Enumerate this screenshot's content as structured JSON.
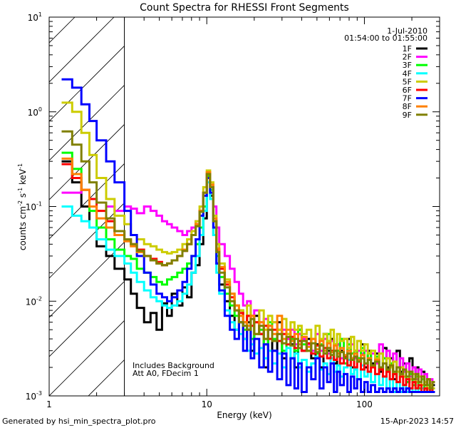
{
  "chart_data": {
    "type": "line",
    "title": "Count Spectra for RHESSI Front Segments",
    "xlabel": "Energy (keV)",
    "ylabel": "counts cm",
    "ylabel_exp1": "-2",
    "ylabel_mid": " s",
    "ylabel_exp2": "-1",
    "ylabel_end": " keV",
    "ylabel_exp3": "-1",
    "x_scale": "log",
    "y_scale": "log",
    "xlim": [
      1,
      300
    ],
    "ylim": [
      0.001,
      10
    ],
    "x_ticks": [
      {
        "value": 1,
        "label": "1"
      },
      {
        "value": 10,
        "label": "10"
      },
      {
        "value": 100,
        "label": "100"
      }
    ],
    "y_ticks": [
      {
        "value": 0.001,
        "base": "10",
        "exp": "-3"
      },
      {
        "value": 0.01,
        "base": "10",
        "exp": "-2"
      },
      {
        "value": 0.1,
        "base": "10",
        "exp": "-1"
      },
      {
        "value": 1,
        "base": "10",
        "exp": "0"
      },
      {
        "value": 10,
        "base": "10",
        "exp": "1"
      }
    ],
    "excluded_region": [
      1,
      3
    ],
    "date": "1-Jul-2010",
    "time_range": "01:54:00 to 01:55:00",
    "notes": [
      "Includes Background",
      "Att A0, FDecim 1"
    ],
    "footer_left": "Generated by hsi_min_spectra_plot.pro",
    "footer_right": "15-Apr-2023 14:57",
    "edges": [
      1.2,
      1.4,
      1.6,
      1.8,
      2.0,
      2.3,
      2.6,
      3.0,
      3.3,
      3.6,
      4.0,
      4.4,
      4.8,
      5.2,
      5.6,
      6.0,
      6.5,
      7.0,
      7.5,
      8.0,
      8.5,
      9.0,
      9.5,
      10.0,
      10.5,
      11.0,
      11.5,
      12.0,
      13.0,
      14.0,
      15.0,
      16.0,
      17.0,
      18.0,
      19.0,
      20.0,
      21.5,
      23.0,
      24.5,
      26.0,
      28.0,
      30.0,
      32.0,
      34.0,
      36.0,
      38.0,
      40.0,
      43.0,
      46.0,
      49.0,
      52.0,
      55.0,
      58.0,
      61.0,
      64.0,
      67.0,
      70.0,
      74.0,
      78.0,
      82.0,
      86.0,
      90.0,
      95.0,
      100.0,
      105.0,
      110.0,
      117.0,
      124.0,
      131.0,
      138.0,
      145.0,
      152.0,
      160.0,
      168.0,
      176.0,
      184.0,
      193.0,
      202.0,
      211.0,
      220.0,
      230.0,
      240.0,
      250.0,
      260.0,
      270.0,
      280.0
    ],
    "series": [
      {
        "name": "1F",
        "color": "#000000",
        "values": [
          0.3,
          0.18,
          0.1,
          0.06,
          0.038,
          0.03,
          0.022,
          0.017,
          0.012,
          0.0085,
          0.006,
          0.0075,
          0.005,
          0.0095,
          0.007,
          0.012,
          0.009,
          0.014,
          0.011,
          0.02,
          0.024,
          0.04,
          0.075,
          0.2,
          0.13,
          0.05,
          0.025,
          0.015,
          0.01,
          0.007,
          0.005,
          0.008,
          0.004,
          0.006,
          0.003,
          0.007,
          0.0045,
          0.002,
          0.0055,
          0.003,
          0.006,
          0.0025,
          0.004,
          0.0035,
          0.002,
          0.005,
          0.003,
          0.004,
          0.0025,
          0.0035,
          0.002,
          0.0045,
          0.003,
          0.004,
          0.0022,
          0.0035,
          0.003,
          0.0025,
          0.004,
          0.002,
          0.003,
          0.0025,
          0.0035,
          0.002,
          0.003,
          0.0022,
          0.0028,
          0.0018,
          0.0032,
          0.002,
          0.0025,
          0.0015,
          0.003,
          0.0018,
          0.0022,
          0.0014,
          0.0025,
          0.0015,
          0.002,
          0.0012,
          0.0018,
          0.0011,
          0.0015,
          0.0011,
          0.0013
        ]
      },
      {
        "name": "2F",
        "color": "#ff00ff",
        "values": [
          0.14,
          0.14,
          0.15,
          0.12,
          0.11,
          0.1,
          0.09,
          0.1,
          0.095,
          0.085,
          0.1,
          0.09,
          0.08,
          0.07,
          0.065,
          0.06,
          0.055,
          0.05,
          0.055,
          0.06,
          0.07,
          0.09,
          0.14,
          0.2,
          0.16,
          0.1,
          0.06,
          0.04,
          0.03,
          0.022,
          0.016,
          0.012,
          0.009,
          0.01,
          0.007,
          0.008,
          0.006,
          0.0065,
          0.005,
          0.006,
          0.0045,
          0.005,
          0.004,
          0.005,
          0.0035,
          0.0045,
          0.004,
          0.0035,
          0.003,
          0.0045,
          0.003,
          0.004,
          0.0028,
          0.0038,
          0.003,
          0.0035,
          0.0025,
          0.004,
          0.003,
          0.0035,
          0.0025,
          0.003,
          0.0028,
          0.003,
          0.0025,
          0.0028,
          0.0022,
          0.0035,
          0.0025,
          0.003,
          0.002,
          0.0028,
          0.002,
          0.0025,
          0.0018,
          0.0022,
          0.0016,
          0.002,
          0.0015,
          0.0019,
          0.0013,
          0.0017,
          0.0012,
          0.0015,
          0.0012
        ]
      },
      {
        "name": "3F",
        "color": "#00ff00",
        "values": [
          0.37,
          0.25,
          0.15,
          0.09,
          0.06,
          0.045,
          0.035,
          0.03,
          0.028,
          0.022,
          0.02,
          0.018,
          0.016,
          0.015,
          0.017,
          0.018,
          0.02,
          0.022,
          0.025,
          0.03,
          0.04,
          0.06,
          0.1,
          0.21,
          0.15,
          0.07,
          0.03,
          0.018,
          0.012,
          0.009,
          0.007,
          0.006,
          0.005,
          0.007,
          0.004,
          0.006,
          0.005,
          0.0035,
          0.006,
          0.004,
          0.005,
          0.003,
          0.0045,
          0.004,
          0.003,
          0.005,
          0.0035,
          0.003,
          0.004,
          0.0028,
          0.0035,
          0.003,
          0.0045,
          0.0025,
          0.0035,
          0.003,
          0.004,
          0.0022,
          0.0035,
          0.0028,
          0.003,
          0.0025,
          0.0032,
          0.0022,
          0.0028,
          0.002,
          0.0026,
          0.002,
          0.0025,
          0.0018,
          0.0022,
          0.0017,
          0.002,
          0.0016,
          0.0019,
          0.0014,
          0.0017,
          0.0013,
          0.0016,
          0.0012,
          0.0015,
          0.0011,
          0.0013,
          0.0011,
          0.0012
        ]
      },
      {
        "name": "4F",
        "color": "#00ffff",
        "values": [
          0.1,
          0.08,
          0.07,
          0.06,
          0.045,
          0.035,
          0.03,
          0.025,
          0.02,
          0.016,
          0.013,
          0.011,
          0.01,
          0.009,
          0.0085,
          0.009,
          0.01,
          0.012,
          0.015,
          0.02,
          0.03,
          0.05,
          0.09,
          0.18,
          0.12,
          0.05,
          0.02,
          0.012,
          0.008,
          0.006,
          0.005,
          0.0045,
          0.004,
          0.003,
          0.0035,
          0.0028,
          0.0032,
          0.0025,
          0.003,
          0.0022,
          0.0028,
          0.002,
          0.0032,
          0.0025,
          0.0028,
          0.002,
          0.0024,
          0.0018,
          0.0022,
          0.0026,
          0.0019,
          0.0022,
          0.0017,
          0.0025,
          0.0018,
          0.0021,
          0.0016,
          0.002,
          0.0024,
          0.0017,
          0.0019,
          0.0015,
          0.0021,
          0.0016,
          0.0018,
          0.0014,
          0.0017,
          0.0013,
          0.0016,
          0.0012,
          0.0015,
          0.0011,
          0.0014,
          0.0011,
          0.0013,
          0.0011,
          0.0012,
          0.0011,
          0.0012,
          0.0011,
          0.0012,
          0.0011,
          0.0012,
          0.0011,
          0.0011
        ]
      },
      {
        "name": "5F",
        "color": "#cccc00",
        "values": [
          1.25,
          1.0,
          0.6,
          0.35,
          0.2,
          0.12,
          0.08,
          0.065,
          0.05,
          0.045,
          0.04,
          0.038,
          0.035,
          0.033,
          0.032,
          0.033,
          0.035,
          0.04,
          0.045,
          0.055,
          0.07,
          0.1,
          0.16,
          0.24,
          0.18,
          0.08,
          0.04,
          0.025,
          0.017,
          0.012,
          0.009,
          0.008,
          0.006,
          0.009,
          0.007,
          0.006,
          0.008,
          0.005,
          0.007,
          0.006,
          0.005,
          0.0065,
          0.0045,
          0.006,
          0.005,
          0.0055,
          0.0045,
          0.005,
          0.004,
          0.0055,
          0.004,
          0.0045,
          0.0038,
          0.005,
          0.0035,
          0.0045,
          0.0038,
          0.004,
          0.0032,
          0.0042,
          0.003,
          0.0038,
          0.003,
          0.0035,
          0.0028,
          0.003,
          0.0025,
          0.0028,
          0.0022,
          0.0025,
          0.002,
          0.0023,
          0.0018,
          0.002,
          0.0016,
          0.0018,
          0.0015,
          0.0017,
          0.0014,
          0.0016,
          0.0013,
          0.0014,
          0.0012,
          0.0013,
          0.0012
        ]
      },
      {
        "name": "6F",
        "color": "#ff0000",
        "values": [
          0.28,
          0.2,
          0.15,
          0.12,
          0.09,
          0.07,
          0.055,
          0.045,
          0.04,
          0.035,
          0.03,
          0.028,
          0.026,
          0.024,
          0.025,
          0.027,
          0.03,
          0.034,
          0.04,
          0.05,
          0.065,
          0.09,
          0.14,
          0.22,
          0.16,
          0.07,
          0.035,
          0.022,
          0.015,
          0.011,
          0.008,
          0.0075,
          0.006,
          0.007,
          0.0055,
          0.006,
          0.0045,
          0.0055,
          0.004,
          0.005,
          0.0038,
          0.0045,
          0.0035,
          0.0042,
          0.0032,
          0.0038,
          0.003,
          0.0036,
          0.0028,
          0.0034,
          0.0026,
          0.0032,
          0.0025,
          0.003,
          0.0024,
          0.0028,
          0.0022,
          0.0026,
          0.0021,
          0.0025,
          0.002,
          0.0023,
          0.0019,
          0.0022,
          0.0018,
          0.002,
          0.0017,
          0.0019,
          0.0016,
          0.0018,
          0.0015,
          0.0017,
          0.0014,
          0.0016,
          0.0013,
          0.0015,
          0.0012,
          0.0014,
          0.0012,
          0.0013,
          0.0011,
          0.0012,
          0.0011,
          0.0012,
          0.0011
        ]
      },
      {
        "name": "7F",
        "color": "#0000ff",
        "values": [
          2.2,
          1.8,
          1.2,
          0.8,
          0.5,
          0.3,
          0.18,
          0.09,
          0.05,
          0.03,
          0.02,
          0.015,
          0.012,
          0.011,
          0.01,
          0.011,
          0.013,
          0.016,
          0.022,
          0.03,
          0.045,
          0.08,
          0.13,
          0.2,
          0.14,
          0.06,
          0.025,
          0.013,
          0.007,
          0.005,
          0.004,
          0.006,
          0.003,
          0.005,
          0.0025,
          0.004,
          0.002,
          0.0035,
          0.0018,
          0.003,
          0.0015,
          0.0028,
          0.0013,
          0.0025,
          0.0012,
          0.0022,
          0.0011,
          0.002,
          0.0015,
          0.0025,
          0.0012,
          0.002,
          0.0014,
          0.0022,
          0.0011,
          0.0018,
          0.0013,
          0.0017,
          0.0011,
          0.0016,
          0.0012,
          0.0015,
          0.0011,
          0.0014,
          0.0011,
          0.0013,
          0.0011,
          0.0012,
          0.0011,
          0.0012,
          0.0011,
          0.0012,
          0.0011,
          0.0012,
          0.0011,
          0.0012,
          0.0011,
          0.0011,
          0.0011,
          0.0011,
          0.0011,
          0.0011,
          0.0011,
          0.0011,
          0.0011
        ]
      },
      {
        "name": "8F",
        "color": "#ff8000",
        "values": [
          0.32,
          0.22,
          0.15,
          0.1,
          0.075,
          0.06,
          0.05,
          0.043,
          0.038,
          0.033,
          0.03,
          0.027,
          0.025,
          0.024,
          0.025,
          0.027,
          0.03,
          0.035,
          0.04,
          0.05,
          0.065,
          0.09,
          0.14,
          0.23,
          0.17,
          0.075,
          0.036,
          0.023,
          0.016,
          0.012,
          0.009,
          0.007,
          0.006,
          0.0055,
          0.007,
          0.0045,
          0.006,
          0.004,
          0.0055,
          0.0045,
          0.007,
          0.004,
          0.005,
          0.0038,
          0.0045,
          0.0035,
          0.0042,
          0.0033,
          0.004,
          0.0031,
          0.0038,
          0.003,
          0.0036,
          0.0029,
          0.0034,
          0.0028,
          0.0032,
          0.0027,
          0.003,
          0.0025,
          0.0028,
          0.0024,
          0.0027,
          0.0022,
          0.0025,
          0.0021,
          0.0024,
          0.002,
          0.0022,
          0.0019,
          0.0021,
          0.0018,
          0.002,
          0.0017,
          0.0019,
          0.0016,
          0.0018,
          0.0015,
          0.0017,
          0.0014,
          0.0016,
          0.0013,
          0.0015,
          0.0012,
          0.0014
        ]
      },
      {
        "name": "9F",
        "color": "#808000",
        "values": [
          0.62,
          0.45,
          0.3,
          0.18,
          0.11,
          0.075,
          0.055,
          0.045,
          0.04,
          0.034,
          0.03,
          0.027,
          0.025,
          0.024,
          0.025,
          0.027,
          0.03,
          0.034,
          0.04,
          0.05,
          0.062,
          0.088,
          0.14,
          0.22,
          0.16,
          0.07,
          0.033,
          0.02,
          0.014,
          0.01,
          0.008,
          0.006,
          0.0055,
          0.005,
          0.0065,
          0.0045,
          0.0055,
          0.004,
          0.005,
          0.0038,
          0.0045,
          0.0036,
          0.0042,
          0.0034,
          0.004,
          0.0032,
          0.0038,
          0.003,
          0.0036,
          0.0029,
          0.0034,
          0.0028,
          0.0032,
          0.0027,
          0.003,
          0.0026,
          0.0029,
          0.0025,
          0.0028,
          0.0024,
          0.0026,
          0.0023,
          0.0025,
          0.0022,
          0.0024,
          0.0021,
          0.0023,
          0.002,
          0.0022,
          0.0019,
          0.0021,
          0.0018,
          0.002,
          0.0017,
          0.0019,
          0.0016,
          0.0018,
          0.0015,
          0.0017,
          0.0014,
          0.0016,
          0.0013,
          0.0015,
          0.0012,
          0.0014
        ]
      }
    ]
  }
}
